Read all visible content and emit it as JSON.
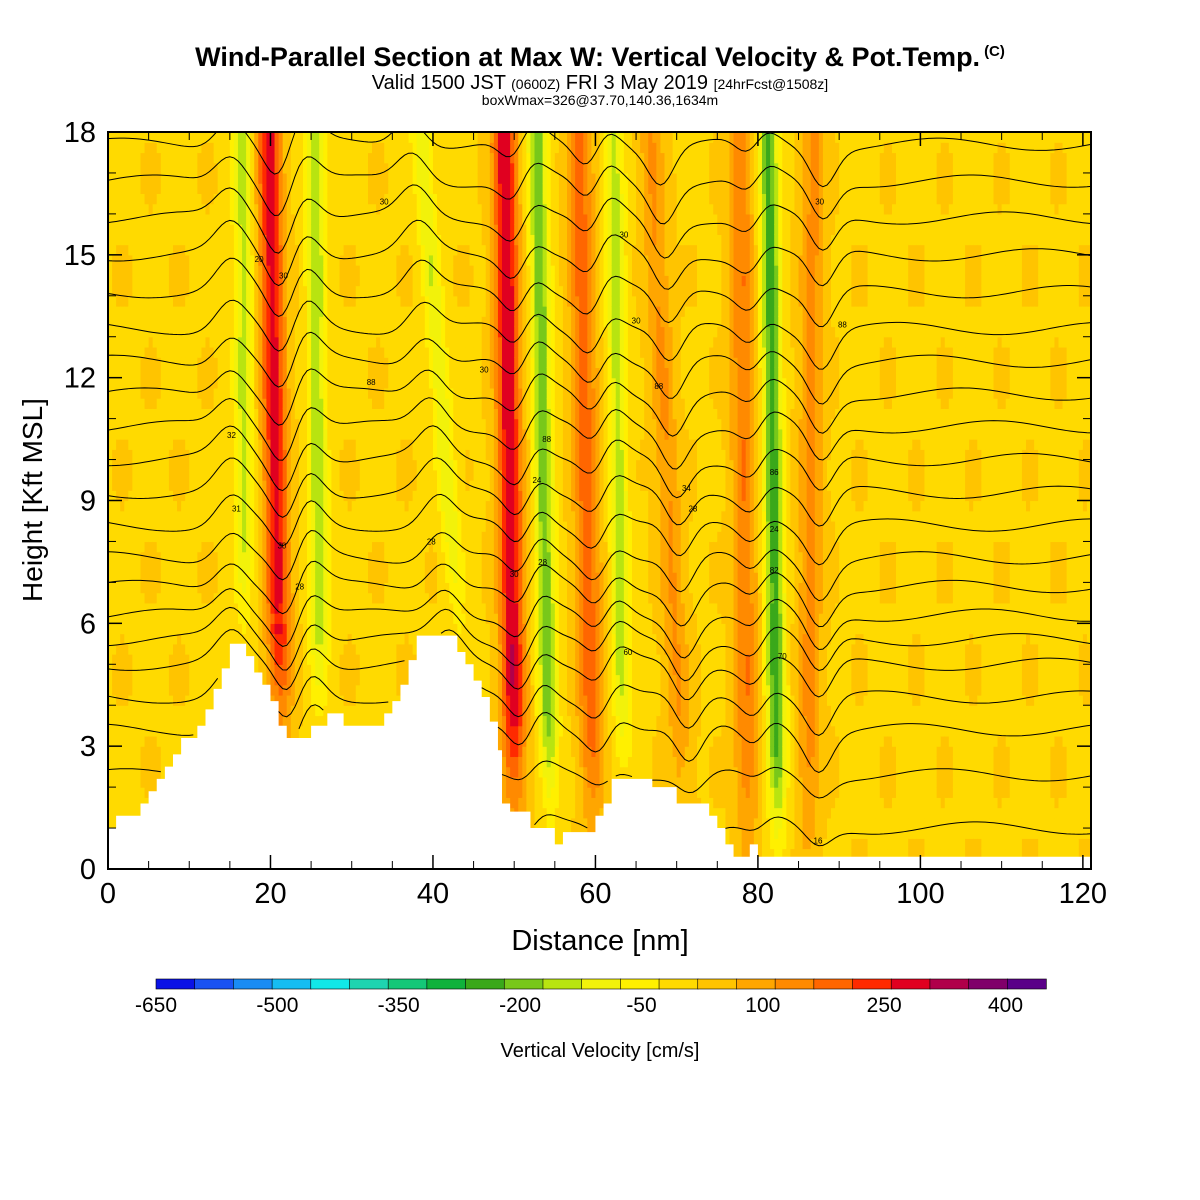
{
  "header": {
    "title": "Wind-Parallel Section at Max W: Vertical Velocity & Pot.Temp.",
    "copyright": "(C)",
    "subtitle_main": "Valid 1500 JST",
    "subtitle_utc": "(0600Z)",
    "subtitle_date": "FRI 3 May 2019",
    "subtitle_fcst": "[24hrFcst@1508z]",
    "subtitle2": "boxWmax=326@37.70,140.36,1634m"
  },
  "chart_data": {
    "type": "heatmap",
    "title": "Wind-Parallel Section at Max W: Vertical Velocity & Pot.Temp.",
    "xlabel": "Distance [nm]",
    "ylabel": "Height [Kft MSL]",
    "xlim": [
      0,
      121
    ],
    "ylim": [
      0,
      18
    ],
    "xticks": [
      0,
      20,
      40,
      60,
      80,
      100,
      120
    ],
    "yticks": [
      0,
      3,
      6,
      9,
      12,
      15,
      18
    ],
    "xtick_labels": [
      "0",
      "20",
      "40",
      "60",
      "80",
      "100",
      "120"
    ],
    "ytick_labels": [
      "0",
      "3",
      "6",
      "9",
      "12",
      "15",
      "18"
    ],
    "colorbar": {
      "label": "Vertical Velocity [cm/s]",
      "tick_labels": [
        "-650",
        "-500",
        "-350",
        "-200",
        "-50",
        "100",
        "250",
        "400"
      ],
      "tick_values": [
        -650,
        -500,
        -350,
        -200,
        -50,
        100,
        250,
        400
      ],
      "bin_edges": [
        -650,
        -600,
        -550,
        -500,
        -450,
        -400,
        -350,
        -300,
        -250,
        -200,
        -150,
        -100,
        -50,
        0,
        50,
        100,
        150,
        200,
        250,
        300,
        350,
        400,
        450
      ],
      "colors": [
        "#0a12e6",
        "#1a52f2",
        "#1a8cf4",
        "#16bdf2",
        "#12e8e8",
        "#1ed4b0",
        "#14c878",
        "#0fb23c",
        "#3aa81a",
        "#78c81a",
        "#b8e410",
        "#f2f20a",
        "#fff000",
        "#ffda00",
        "#ffc400",
        "#ffa600",
        "#ff8a00",
        "#ff6600",
        "#ff2a00",
        "#e00020",
        "#b0004a",
        "#80006a",
        "#5a0088"
      ]
    },
    "terrain_profile_kft": [
      [
        0,
        1.0
      ],
      [
        1,
        1.0
      ],
      [
        1,
        1.3
      ],
      [
        4,
        1.3
      ],
      [
        4,
        1.6
      ],
      [
        5,
        1.6
      ],
      [
        5,
        1.9
      ],
      [
        6,
        1.9
      ],
      [
        6,
        2.2
      ],
      [
        7,
        2.2
      ],
      [
        7,
        2.5
      ],
      [
        8,
        2.5
      ],
      [
        8,
        2.8
      ],
      [
        9,
        2.8
      ],
      [
        9,
        3.2
      ],
      [
        11,
        3.2
      ],
      [
        11,
        3.5
      ],
      [
        12,
        3.5
      ],
      [
        12,
        3.9
      ],
      [
        13,
        3.9
      ],
      [
        13,
        4.4
      ],
      [
        14,
        4.4
      ],
      [
        14,
        4.9
      ],
      [
        15,
        4.9
      ],
      [
        15,
        5.5
      ],
      [
        17,
        5.5
      ],
      [
        17,
        5.2
      ],
      [
        18,
        5.2
      ],
      [
        18,
        4.8
      ],
      [
        19,
        4.8
      ],
      [
        19,
        4.5
      ],
      [
        20,
        4.5
      ],
      [
        20,
        4.1
      ],
      [
        21,
        4.1
      ],
      [
        21,
        3.5
      ],
      [
        22,
        3.5
      ],
      [
        22,
        3.2
      ],
      [
        25,
        3.2
      ],
      [
        25,
        3.5
      ],
      [
        27,
        3.5
      ],
      [
        27,
        3.8
      ],
      [
        29,
        3.8
      ],
      [
        29,
        3.5
      ],
      [
        34,
        3.5
      ],
      [
        34,
        3.8
      ],
      [
        35,
        3.8
      ],
      [
        35,
        4.1
      ],
      [
        36,
        4.1
      ],
      [
        36,
        4.5
      ],
      [
        37,
        4.5
      ],
      [
        37,
        5.1
      ],
      [
        38,
        5.1
      ],
      [
        38,
        5.7
      ],
      [
        43,
        5.7
      ],
      [
        43,
        5.3
      ],
      [
        44,
        5.3
      ],
      [
        44,
        5.0
      ],
      [
        45,
        5.0
      ],
      [
        45,
        4.6
      ],
      [
        46,
        4.6
      ],
      [
        46,
        4.2
      ],
      [
        47,
        4.2
      ],
      [
        47,
        3.6
      ],
      [
        48,
        3.6
      ],
      [
        48,
        2.9
      ],
      [
        48.5,
        2.9
      ],
      [
        48.5,
        1.6
      ],
      [
        49.5,
        1.6
      ],
      [
        49.5,
        1.4
      ],
      [
        52,
        1.4
      ],
      [
        52,
        1.0
      ],
      [
        55,
        1.0
      ],
      [
        55,
        0.6
      ],
      [
        56,
        0.6
      ],
      [
        56,
        0.9
      ],
      [
        60,
        0.9
      ],
      [
        60,
        1.3
      ],
      [
        61,
        1.3
      ],
      [
        61,
        1.6
      ],
      [
        62,
        1.6
      ],
      [
        62,
        2.2
      ],
      [
        67,
        2.2
      ],
      [
        67,
        2.0
      ],
      [
        70,
        2.0
      ],
      [
        70,
        1.6
      ],
      [
        74,
        1.6
      ],
      [
        74,
        1.3
      ],
      [
        75,
        1.3
      ],
      [
        75,
        1.0
      ],
      [
        76,
        1.0
      ],
      [
        76,
        0.6
      ],
      [
        77,
        0.6
      ],
      [
        77,
        0.3
      ],
      [
        79,
        0.3
      ],
      [
        79,
        0.6
      ],
      [
        80,
        0.6
      ],
      [
        80,
        0.3
      ],
      [
        121,
        0.3
      ]
    ],
    "updraft_bands": [
      {
        "x_top": 19.8,
        "x_bottom": 21.6,
        "peak_cm_s": 280
      },
      {
        "x_top": 48.8,
        "x_bottom": 50.2,
        "peak_cm_s": 300
      },
      {
        "x_top": 58.0,
        "x_bottom": 59.8,
        "peak_cm_s": 180
      },
      {
        "x_top": 66.8,
        "x_bottom": 71.2,
        "peak_cm_s": 110
      },
      {
        "x_top": 77.8,
        "x_bottom": 78.8,
        "peak_cm_s": 150
      },
      {
        "x_top": 86.8,
        "x_bottom": 86.2,
        "peak_cm_s": 120
      }
    ],
    "downdraft_bands": [
      {
        "x_top": 16.6,
        "x_bottom": 16.8,
        "peak_cm_s": -160
      },
      {
        "x_top": 25.5,
        "x_bottom": 26.2,
        "peak_cm_s": -180
      },
      {
        "x_top": 38.5,
        "x_bottom": 45.4,
        "peak_cm_s": -140
      },
      {
        "x_top": 52.8,
        "x_bottom": 54.6,
        "peak_cm_s": -230
      },
      {
        "x_top": 62.2,
        "x_bottom": 63.6,
        "peak_cm_s": -170
      },
      {
        "x_top": 81.3,
        "x_bottom": 82.5,
        "peak_cm_s": -270
      }
    ],
    "isentrope_base_heights_kft": [
      1.0,
      2.3,
      3.4,
      4.2,
      5.0,
      5.6,
      6.2,
      6.9,
      7.6,
      8.4,
      9.2,
      10.0,
      10.8,
      11.6,
      12.4,
      13.2,
      14.1,
      15.0,
      15.9,
      16.8,
      17.7
    ],
    "isentrope_labels": [
      {
        "x": 15.2,
        "y": 10.6,
        "text": "32"
      },
      {
        "x": 15.8,
        "y": 8.8,
        "text": "31"
      },
      {
        "x": 18.6,
        "y": 14.9,
        "text": "20"
      },
      {
        "x": 21.4,
        "y": 7.9,
        "text": "30"
      },
      {
        "x": 21.6,
        "y": 14.5,
        "text": "30"
      },
      {
        "x": 23.6,
        "y": 6.9,
        "text": "28"
      },
      {
        "x": 32.4,
        "y": 11.9,
        "text": "88"
      },
      {
        "x": 34.0,
        "y": 16.3,
        "text": "30"
      },
      {
        "x": 39.8,
        "y": 8.0,
        "text": "28"
      },
      {
        "x": 46.3,
        "y": 12.2,
        "text": "30"
      },
      {
        "x": 50.0,
        "y": 7.2,
        "text": "30"
      },
      {
        "x": 52.8,
        "y": 9.5,
        "text": "24"
      },
      {
        "x": 53.5,
        "y": 7.5,
        "text": "28"
      },
      {
        "x": 54.0,
        "y": 10.5,
        "text": "88"
      },
      {
        "x": 63.5,
        "y": 15.5,
        "text": "30"
      },
      {
        "x": 64.0,
        "y": 5.3,
        "text": "60"
      },
      {
        "x": 65.0,
        "y": 13.4,
        "text": "30"
      },
      {
        "x": 67.8,
        "y": 11.8,
        "text": "88"
      },
      {
        "x": 71.2,
        "y": 9.3,
        "text": "34"
      },
      {
        "x": 72.0,
        "y": 8.8,
        "text": "28"
      },
      {
        "x": 82.0,
        "y": 9.7,
        "text": "86"
      },
      {
        "x": 82.0,
        "y": 8.3,
        "text": "24"
      },
      {
        "x": 82.0,
        "y": 7.3,
        "text": "82"
      },
      {
        "x": 83.0,
        "y": 5.2,
        "text": "70"
      },
      {
        "x": 87.6,
        "y": 16.3,
        "text": "30"
      },
      {
        "x": 90.4,
        "y": 13.3,
        "text": "88"
      },
      {
        "x": 87.4,
        "y": 0.7,
        "text": "16"
      }
    ]
  }
}
